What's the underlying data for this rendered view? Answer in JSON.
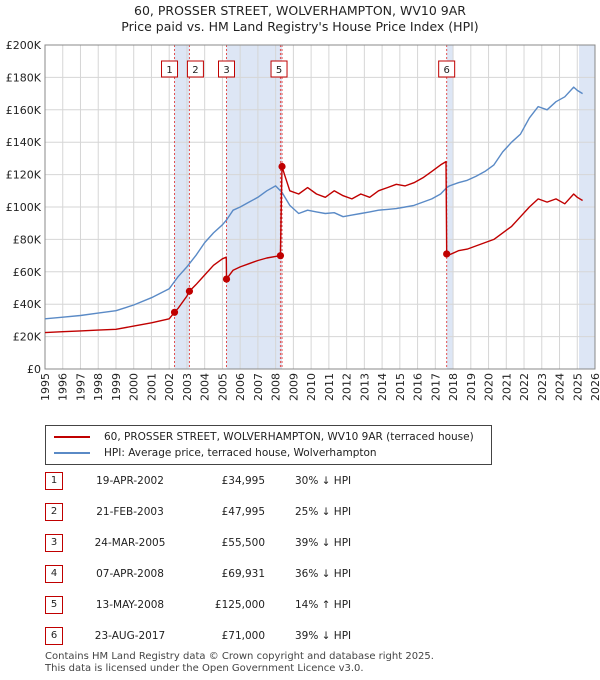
{
  "chart_data": {
    "type": "line",
    "title": "60, PROSSER STREET, WOLVERHAMPTON, WV10 9AR",
    "subtitle": "Price paid vs. HM Land Registry's House Price Index (HPI)",
    "xlim": [
      1995,
      2026
    ],
    "ylim": [
      0,
      200000
    ],
    "x_ticks": [
      "1995",
      "1996",
      "1997",
      "1998",
      "1999",
      "2000",
      "2001",
      "2002",
      "2003",
      "2004",
      "2005",
      "2006",
      "2007",
      "2008",
      "2009",
      "2010",
      "2011",
      "2012",
      "2013",
      "2014",
      "2015",
      "2016",
      "2017",
      "2018",
      "2019",
      "2020",
      "2021",
      "2022",
      "2023",
      "2024",
      "2025",
      "2026"
    ],
    "y_ticks": [
      {
        "value": 0,
        "label": "£0"
      },
      {
        "value": 20000,
        "label": "£20K"
      },
      {
        "value": 40000,
        "label": "£40K"
      },
      {
        "value": 60000,
        "label": "£60K"
      },
      {
        "value": 80000,
        "label": "£80K"
      },
      {
        "value": 100000,
        "label": "£100K"
      },
      {
        "value": 120000,
        "label": "£120K"
      },
      {
        "value": 140000,
        "label": "£140K"
      },
      {
        "value": 160000,
        "label": "£160K"
      },
      {
        "value": 180000,
        "label": "£180K"
      },
      {
        "value": 200000,
        "label": "£200K"
      }
    ],
    "shaded_spans": [
      [
        2002.3,
        2003.14
      ],
      [
        2005.23,
        2008.36
      ],
      [
        2017.64,
        2018.0
      ],
      [
        2025.1,
        2026.0
      ]
    ],
    "series": [
      {
        "name": "60, PROSSER STREET, WOLVERHAMPTON, WV10 9AR (terraced house)",
        "color": "#c00000",
        "x": [
          1995.0,
          1996.0,
          1997.0,
          1998.0,
          1999.0,
          2000.0,
          2001.0,
          2002.0,
          2002.3,
          2002.5,
          2003.0,
          2003.14,
          2003.5,
          2004.0,
          2004.5,
          2005.0,
          2005.22,
          2005.23,
          2005.6,
          2006.0,
          2006.5,
          2007.0,
          2007.5,
          2008.0,
          2008.27,
          2008.36,
          2008.5,
          2008.8,
          2009.3,
          2009.8,
          2010.3,
          2010.8,
          2011.3,
          2011.8,
          2012.3,
          2012.8,
          2013.3,
          2013.8,
          2014.3,
          2014.8,
          2015.3,
          2015.8,
          2016.3,
          2016.8,
          2017.3,
          2017.6,
          2017.64,
          2017.8,
          2018.3,
          2018.8,
          2019.3,
          2019.8,
          2020.3,
          2020.8,
          2021.3,
          2021.8,
          2022.3,
          2022.8,
          2023.3,
          2023.8,
          2024.3,
          2024.8,
          2025.0,
          2025.3
        ],
        "y": [
          22500,
          23000,
          23500,
          24000,
          24500,
          26500,
          28500,
          31000,
          34995,
          37500,
          45000,
          47995,
          52000,
          58000,
          64000,
          68000,
          69000,
          55500,
          61000,
          63000,
          65000,
          67000,
          68500,
          69500,
          69931,
          125000,
          120000,
          110000,
          108000,
          112000,
          108000,
          106000,
          110000,
          107000,
          105000,
          108000,
          106000,
          110000,
          112000,
          114000,
          113000,
          115000,
          118000,
          122000,
          126000,
          128000,
          71000,
          70500,
          73000,
          74000,
          76000,
          78000,
          80000,
          84000,
          88000,
          94000,
          100000,
          105000,
          103000,
          105000,
          102000,
          108000,
          106000,
          104000
        ]
      },
      {
        "name": "HPI: Average price, terraced house, Wolverhampton",
        "color": "#5a8ac6",
        "x": [
          1995.0,
          1996.0,
          1997.0,
          1998.0,
          1999.0,
          2000.0,
          2001.0,
          2002.0,
          2002.3,
          2002.5,
          2003.0,
          2003.14,
          2003.5,
          2004.0,
          2004.5,
          2005.0,
          2005.23,
          2005.6,
          2006.0,
          2006.5,
          2007.0,
          2007.5,
          2008.0,
          2008.36,
          2008.8,
          2009.3,
          2009.8,
          2010.3,
          2010.8,
          2011.3,
          2011.8,
          2012.3,
          2012.8,
          2013.3,
          2013.8,
          2014.3,
          2014.8,
          2015.3,
          2015.8,
          2016.3,
          2016.8,
          2017.3,
          2017.64,
          2017.8,
          2018.3,
          2018.8,
          2019.3,
          2019.8,
          2020.3,
          2020.8,
          2021.3,
          2021.8,
          2022.3,
          2022.8,
          2023.3,
          2023.8,
          2024.3,
          2024.8,
          2025.0,
          2025.3
        ],
        "y": [
          31000,
          32000,
          33000,
          34500,
          36000,
          39500,
          44000,
          49500,
          54000,
          57000,
          63000,
          65000,
          70000,
          78000,
          84000,
          89000,
          92000,
          98000,
          100000,
          103000,
          106000,
          110000,
          113000,
          109000,
          101000,
          96000,
          98000,
          97000,
          96000,
          96500,
          94000,
          95000,
          96000,
          97000,
          98000,
          98500,
          99000,
          100000,
          101000,
          103000,
          105000,
          108000,
          112000,
          113000,
          115000,
          116500,
          119000,
          122000,
          126000,
          134000,
          140000,
          145000,
          155000,
          162000,
          160000,
          165000,
          168000,
          174000,
          172000,
          170000
        ]
      }
    ],
    "sales": [
      {
        "id": "1",
        "x": 2002.3,
        "price": 34995
      },
      {
        "id": "2",
        "x": 2003.14,
        "price": 47995
      },
      {
        "id": "3",
        "x": 2005.23,
        "price": 55500
      },
      {
        "id": "4",
        "x": 2008.27,
        "price": 69931
      },
      {
        "id": "5",
        "x": 2008.36,
        "price": 125000
      },
      {
        "id": "6",
        "x": 2017.64,
        "price": 71000
      }
    ]
  },
  "header": {
    "title": "60, PROSSER STREET, WOLVERHAMPTON, WV10 9AR",
    "subtitle": "Price paid vs. HM Land Registry's House Price Index (HPI)"
  },
  "legend": {
    "property": "60, PROSSER STREET, WOLVERHAMPTON, WV10 9AR (terraced house)",
    "hpi": "HPI: Average price, terraced house, Wolverhampton"
  },
  "transactions": [
    {
      "id": "1",
      "date": "19-APR-2002",
      "price": "£34,995",
      "hpi": "30% ↓ HPI"
    },
    {
      "id": "2",
      "date": "21-FEB-2003",
      "price": "£47,995",
      "hpi": "25% ↓ HPI"
    },
    {
      "id": "3",
      "date": "24-MAR-2005",
      "price": "£55,500",
      "hpi": "39% ↓ HPI"
    },
    {
      "id": "4",
      "date": "07-APR-2008",
      "price": "£69,931",
      "hpi": "36% ↓ HPI"
    },
    {
      "id": "5",
      "date": "13-MAY-2008",
      "price": "£125,000",
      "hpi": "14% ↑ HPI"
    },
    {
      "id": "6",
      "date": "23-AUG-2017",
      "price": "£71,000",
      "hpi": "39% ↓ HPI"
    }
  ],
  "footer": {
    "line1": "Contains HM Land Registry data © Crown copyright and database right 2025.",
    "line2": "This data is licensed under the Open Government Licence v3.0."
  },
  "colors": {
    "property": "#c00000",
    "hpi": "#5a8ac6",
    "shade": "#dde6f5",
    "grid": "#d6d6d6"
  }
}
